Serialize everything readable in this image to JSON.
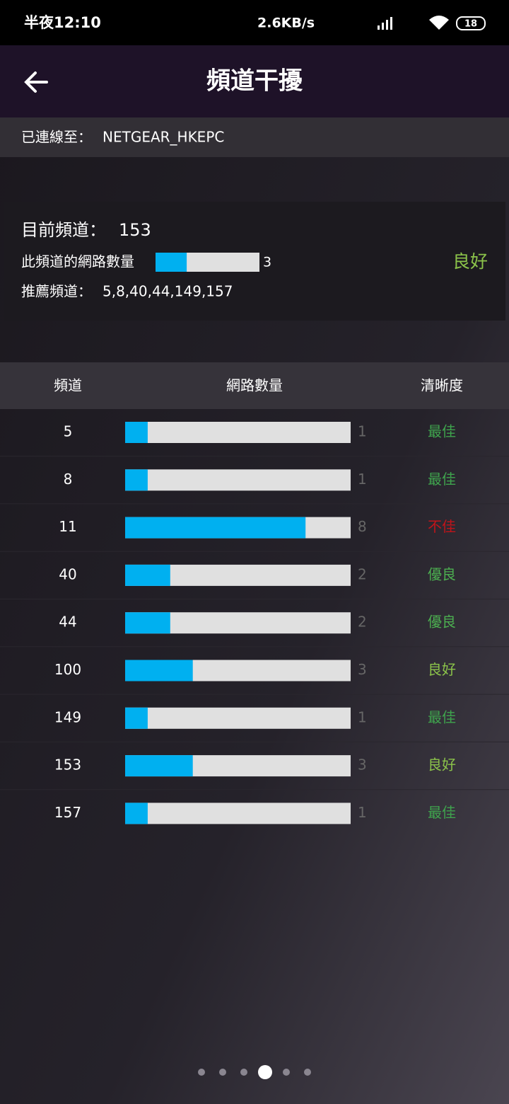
{
  "status_bar": {
    "time": "半夜12:10",
    "speed": "2.6KB/s",
    "battery": "18"
  },
  "header": {
    "title": "頻道干擾"
  },
  "connection": {
    "label": "已連線至：",
    "ssid": "NETGEAR_HKEPC"
  },
  "current": {
    "label": "目前頻道：",
    "channel": 153,
    "count_label": "此頻道的網路數量",
    "count": 3,
    "quality": "良好",
    "quality_color": "#8bc34a",
    "recommend_label": "推薦頻道：",
    "recommended": "5,8,40,44,149,157"
  },
  "table": {
    "columns": [
      "頻道",
      "網路數量",
      "清晰度"
    ],
    "xlim": [
      0,
      10
    ],
    "bar_color": "#00b0f0",
    "track_color": "#e0e0e0",
    "rows": [
      {
        "channel": 5,
        "count": 1,
        "quality": "最佳",
        "color": "#3fa34d"
      },
      {
        "channel": 8,
        "count": 1,
        "quality": "最佳",
        "color": "#3fa34d"
      },
      {
        "channel": 11,
        "count": 8,
        "quality": "不佳",
        "color": "#c0141a"
      },
      {
        "channel": 40,
        "count": 2,
        "quality": "優良",
        "color": "#4caf50"
      },
      {
        "channel": 44,
        "count": 2,
        "quality": "優良",
        "color": "#4caf50"
      },
      {
        "channel": 100,
        "count": 3,
        "quality": "良好",
        "color": "#8bc34a"
      },
      {
        "channel": 149,
        "count": 1,
        "quality": "最佳",
        "color": "#3fa34d"
      },
      {
        "channel": 153,
        "count": 3,
        "quality": "良好",
        "color": "#8bc34a"
      },
      {
        "channel": 157,
        "count": 1,
        "quality": "最佳",
        "color": "#3fa34d"
      }
    ]
  },
  "pager": {
    "count": 6,
    "active": 3
  }
}
